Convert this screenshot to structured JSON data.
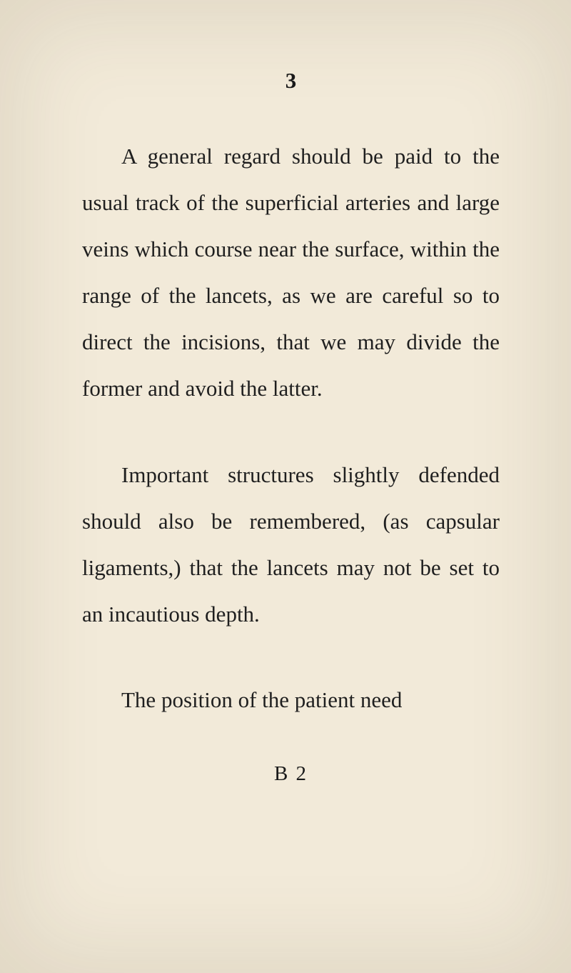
{
  "page": {
    "number": "3",
    "background_color": "#f2ead9",
    "text_color": "#1f1f1f",
    "font_family": "Georgia, 'Times New Roman', serif",
    "body_fontsize": 31,
    "line_height": 2.1
  },
  "paragraphs": {
    "p1": "A general regard should be paid to the usual track of the super­ficial arteries and large veins which course near the surface, within the range of the lancets, as we are careful so to direct the incisions, that we may divide the former and avoid the latter.",
    "p2": "Important structures slightly de­fended should also be remembered, (as capsular ligaments,) that the lancets may not be set to an incau­tious depth.",
    "p3": "The position of the patient need"
  },
  "signature": "B 2"
}
